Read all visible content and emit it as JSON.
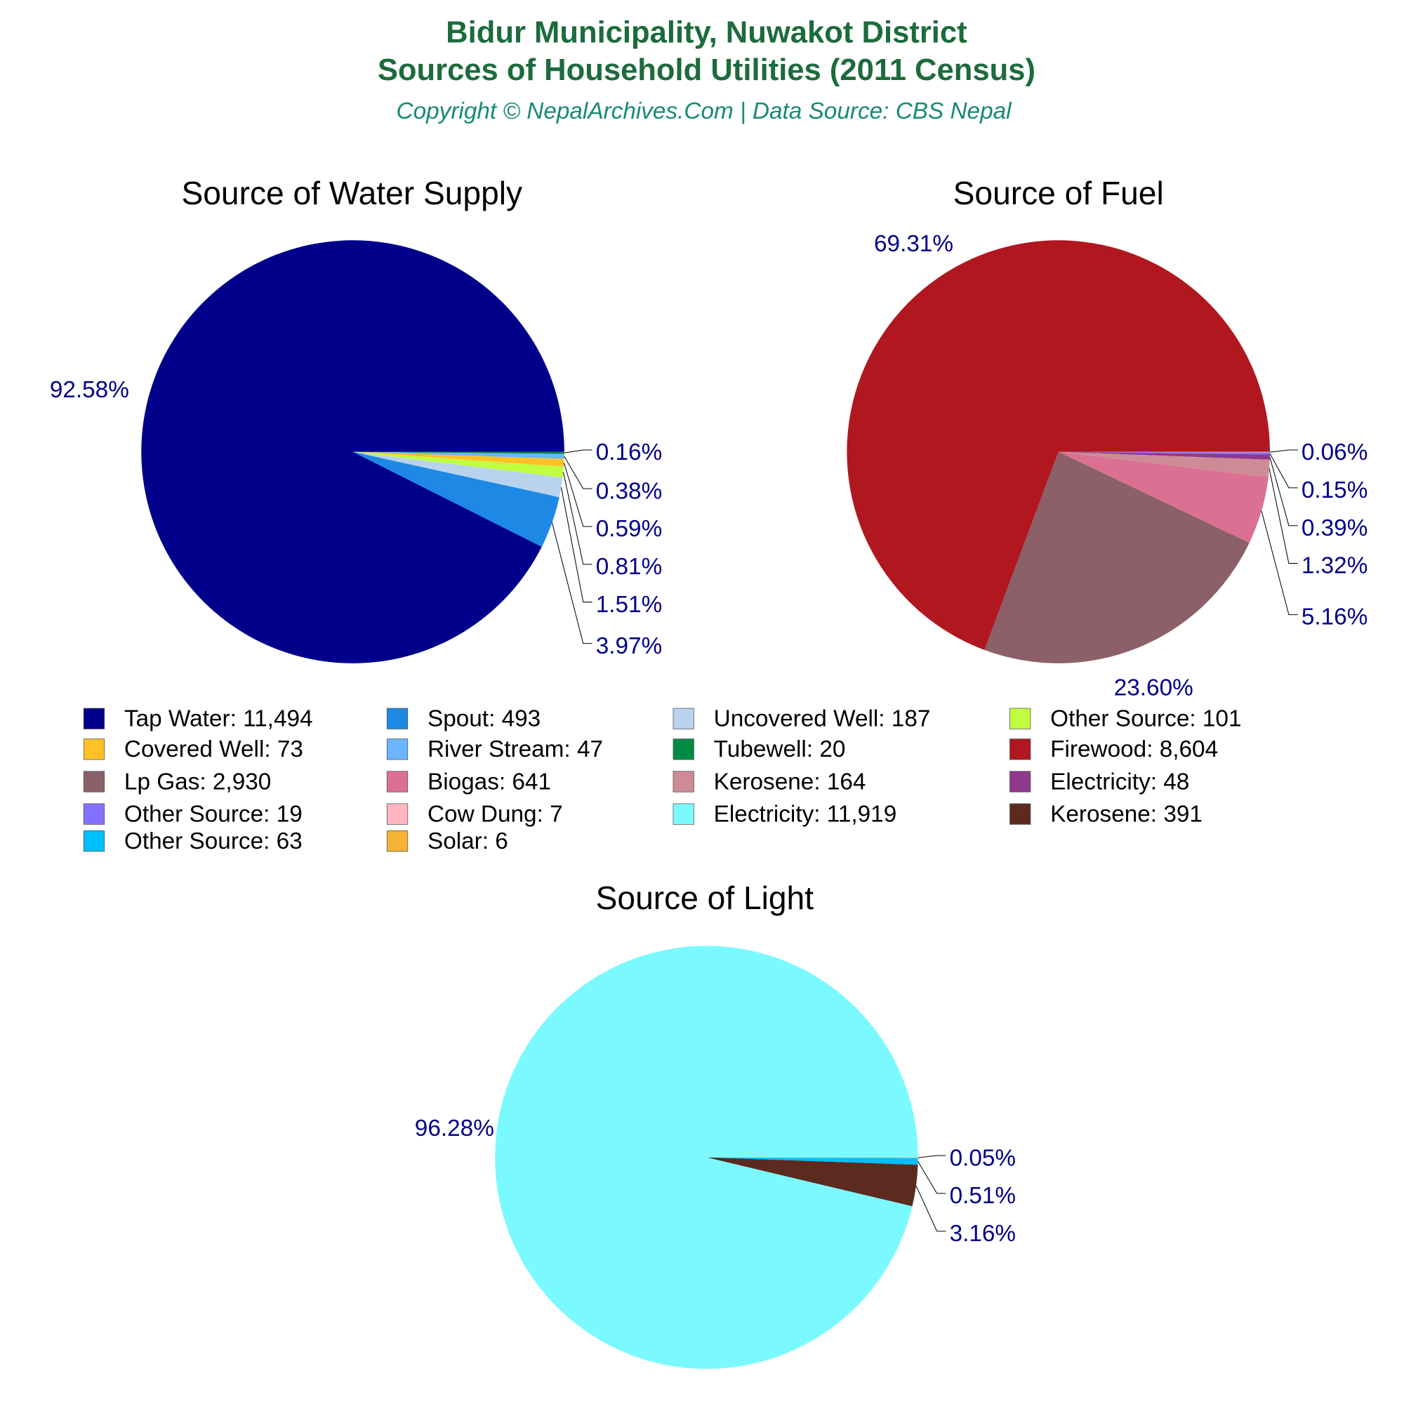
{
  "header": {
    "title_line1": "Bidur Municipality, Nuwakot District",
    "title_line2": "Sources of Household Utilities (2011 Census)",
    "subtitle": "Copyright © NepalArchives.Com | Data Source: CBS Nepal"
  },
  "chart_data": [
    {
      "type": "pie",
      "title": "Source of Water Supply",
      "direction": "clockwise from 3 o'clock",
      "slices": [
        {
          "label": "Tubewell",
          "value": 20,
          "percent": "0.16%",
          "color": "#008b45"
        },
        {
          "label": "River Stream",
          "value": 47,
          "percent": "0.38%",
          "color": "#6cb6ff"
        },
        {
          "label": "Covered Well",
          "value": 73,
          "percent": "0.59%",
          "color": "#ffc125"
        },
        {
          "label": "Other Source",
          "value": 101,
          "percent": "0.81%",
          "color": "#bfff3f"
        },
        {
          "label": "Uncovered Well",
          "value": 187,
          "percent": "1.51%",
          "color": "#b9d3ee"
        },
        {
          "label": "Spout",
          "value": 493,
          "percent": "3.97%",
          "color": "#1e88e5"
        },
        {
          "label": "Tap Water",
          "value": 11494,
          "percent": "92.58%",
          "color": "#00008b"
        }
      ]
    },
    {
      "type": "pie",
      "title": "Source of Fuel",
      "direction": "clockwise from 3 o'clock",
      "slices": [
        {
          "label": "Cow Dung",
          "value": 7,
          "percent": "0.06%",
          "color": "#ffb6c1"
        },
        {
          "label": "Other Source",
          "value": 19,
          "percent": "0.15%",
          "color": "#8470ff"
        },
        {
          "label": "Electricity",
          "value": 48,
          "percent": "0.39%",
          "color": "#8e388e"
        },
        {
          "label": "Kerosene",
          "value": 164,
          "percent": "1.32%",
          "color": "#cd8c95"
        },
        {
          "label": "Biogas",
          "value": 641,
          "percent": "5.16%",
          "color": "#db7093"
        },
        {
          "label": "Lp Gas",
          "value": 2930,
          "percent": "23.60%",
          "color": "#8b6068"
        },
        {
          "label": "Firewood",
          "value": 8604,
          "percent": "69.31%",
          "color": "#b0171f"
        }
      ]
    },
    {
      "type": "pie",
      "title": "Source of Light",
      "direction": "clockwise from 3 o'clock",
      "slices": [
        {
          "label": "Solar",
          "value": 6,
          "percent": "0.05%",
          "color": "#f5b335"
        },
        {
          "label": "Other Source",
          "value": 63,
          "percent": "0.51%",
          "color": "#00bfff"
        },
        {
          "label": "Kerosene",
          "value": 391,
          "percent": "3.16%",
          "color": "#5c2a1e"
        },
        {
          "label": "Electricity",
          "value": 11919,
          "percent": "96.28%",
          "color": "#7afaff"
        }
      ]
    }
  ],
  "legend": [
    {
      "text": "Tap Water: 11,494",
      "color": "#00008b"
    },
    {
      "text": "Spout: 493",
      "color": "#1e88e5"
    },
    {
      "text": "Uncovered Well: 187",
      "color": "#b9d3ee"
    },
    {
      "text": "Other Source: 101",
      "color": "#bfff3f"
    },
    {
      "text": "Covered Well: 73",
      "color": "#ffc125"
    },
    {
      "text": "River Stream: 47",
      "color": "#6cb6ff"
    },
    {
      "text": "Tubewell: 20",
      "color": "#008b45"
    },
    {
      "text": "Firewood: 8,604",
      "color": "#b0171f"
    },
    {
      "text": "Lp Gas: 2,930",
      "color": "#8b6068"
    },
    {
      "text": "Biogas: 641",
      "color": "#db7093"
    },
    {
      "text": "Kerosene: 164",
      "color": "#cd8c95"
    },
    {
      "text": "Electricity: 48",
      "color": "#8e388e"
    },
    {
      "text": "Other Source: 19",
      "color": "#8470ff"
    },
    {
      "text": "Cow Dung: 7",
      "color": "#ffb6c1"
    },
    {
      "text": "Electricity: 11,919",
      "color": "#7afaff"
    },
    {
      "text": "Kerosene: 391",
      "color": "#5c2a1e"
    },
    {
      "text": "Other Source: 63",
      "color": "#00bfff"
    },
    {
      "text": "Solar: 6",
      "color": "#f5b335"
    }
  ]
}
